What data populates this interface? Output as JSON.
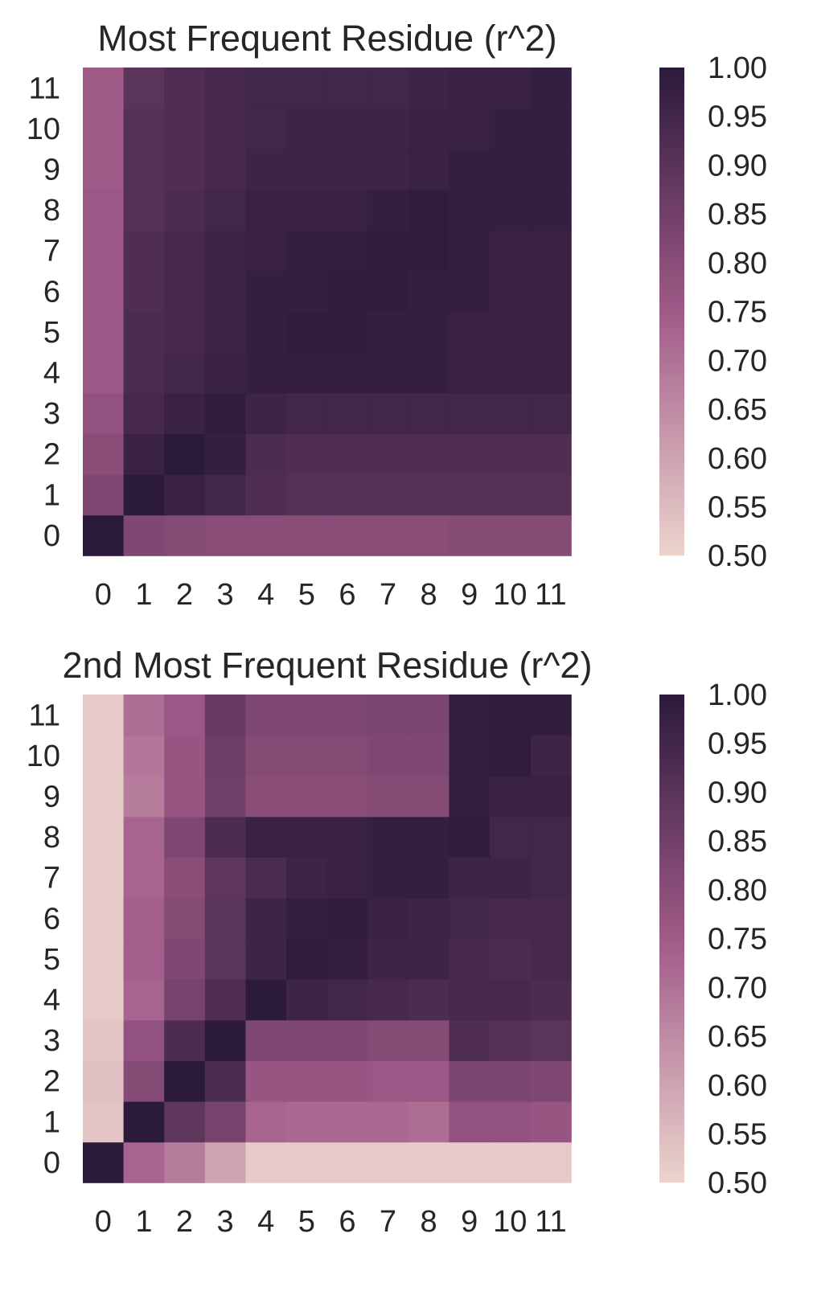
{
  "figure": {
    "colorscale": {
      "low": "#ecd4cd",
      "mid": "#a05a88",
      "high": "#2b1a3a"
    }
  },
  "chart_data": [
    {
      "type": "heatmap",
      "title": "Most Frequent Residue (r^2)",
      "xlabel": "",
      "ylabel": "",
      "x_categories": [
        "0",
        "1",
        "2",
        "3",
        "4",
        "5",
        "6",
        "7",
        "8",
        "9",
        "10",
        "11"
      ],
      "y_categories": [
        "0",
        "1",
        "2",
        "3",
        "4",
        "5",
        "6",
        "7",
        "8",
        "9",
        "10",
        "11"
      ],
      "vmin": 0.5,
      "vmax": 1.0,
      "colorbar_ticks": [
        "0.50",
        "0.55",
        "0.60",
        "0.65",
        "0.70",
        "0.75",
        "0.80",
        "0.85",
        "0.90",
        "0.95",
        "1.00"
      ],
      "values": [
        [
          1.0,
          0.82,
          0.81,
          0.8,
          0.8,
          0.8,
          0.8,
          0.8,
          0.8,
          0.81,
          0.81,
          0.81
        ],
        [
          0.82,
          1.0,
          0.97,
          0.95,
          0.92,
          0.91,
          0.91,
          0.91,
          0.91,
          0.91,
          0.91,
          0.91
        ],
        [
          0.8,
          0.97,
          1.0,
          0.98,
          0.93,
          0.92,
          0.92,
          0.92,
          0.92,
          0.92,
          0.92,
          0.92
        ],
        [
          0.78,
          0.94,
          0.97,
          0.99,
          0.96,
          0.95,
          0.95,
          0.95,
          0.95,
          0.95,
          0.95,
          0.95
        ],
        [
          0.76,
          0.93,
          0.95,
          0.97,
          0.98,
          0.98,
          0.98,
          0.98,
          0.98,
          0.97,
          0.97,
          0.97
        ],
        [
          0.76,
          0.93,
          0.94,
          0.96,
          0.98,
          0.99,
          0.99,
          0.98,
          0.98,
          0.97,
          0.97,
          0.97
        ],
        [
          0.76,
          0.92,
          0.94,
          0.96,
          0.98,
          0.98,
          0.99,
          0.99,
          0.98,
          0.98,
          0.97,
          0.97
        ],
        [
          0.76,
          0.92,
          0.94,
          0.96,
          0.97,
          0.98,
          0.98,
          0.99,
          0.99,
          0.98,
          0.97,
          0.97
        ],
        [
          0.76,
          0.91,
          0.93,
          0.95,
          0.97,
          0.97,
          0.97,
          0.98,
          0.99,
          0.98,
          0.98,
          0.98
        ],
        [
          0.75,
          0.91,
          0.92,
          0.94,
          0.96,
          0.96,
          0.96,
          0.96,
          0.97,
          0.98,
          0.98,
          0.98
        ],
        [
          0.75,
          0.91,
          0.92,
          0.94,
          0.95,
          0.96,
          0.96,
          0.96,
          0.97,
          0.97,
          0.98,
          0.98
        ],
        [
          0.75,
          0.9,
          0.92,
          0.94,
          0.95,
          0.95,
          0.95,
          0.95,
          0.96,
          0.97,
          0.97,
          0.98
        ]
      ]
    },
    {
      "type": "heatmap",
      "title": "2nd Most Frequent Residue (r^2)",
      "xlabel": "",
      "ylabel": "",
      "x_categories": [
        "0",
        "1",
        "2",
        "3",
        "4",
        "5",
        "6",
        "7",
        "8",
        "9",
        "10",
        "11"
      ],
      "y_categories": [
        "0",
        "1",
        "2",
        "3",
        "4",
        "5",
        "6",
        "7",
        "8",
        "9",
        "10",
        "11"
      ],
      "vmin": 0.5,
      "vmax": 1.0,
      "colorbar_ticks": [
        "0.50",
        "0.55",
        "0.60",
        "0.65",
        "0.70",
        "0.75",
        "0.80",
        "0.85",
        "0.90",
        "0.95",
        "1.00"
      ],
      "values": [
        [
          1.0,
          0.73,
          0.68,
          0.6,
          0.52,
          0.52,
          0.52,
          0.52,
          0.52,
          0.52,
          0.52,
          0.52
        ],
        [
          0.53,
          1.0,
          0.89,
          0.84,
          0.73,
          0.72,
          0.72,
          0.72,
          0.71,
          0.78,
          0.78,
          0.77
        ],
        [
          0.54,
          0.81,
          1.0,
          0.93,
          0.77,
          0.77,
          0.77,
          0.76,
          0.76,
          0.83,
          0.83,
          0.82
        ],
        [
          0.53,
          0.78,
          0.93,
          1.0,
          0.82,
          0.82,
          0.82,
          0.81,
          0.81,
          0.92,
          0.91,
          0.9
        ],
        [
          0.52,
          0.73,
          0.84,
          0.92,
          1.0,
          0.96,
          0.95,
          0.94,
          0.93,
          0.94,
          0.94,
          0.93
        ],
        [
          0.52,
          0.74,
          0.82,
          0.9,
          0.96,
          0.99,
          0.98,
          0.96,
          0.96,
          0.94,
          0.93,
          0.94
        ],
        [
          0.52,
          0.74,
          0.81,
          0.9,
          0.96,
          0.98,
          0.99,
          0.97,
          0.96,
          0.95,
          0.94,
          0.94
        ],
        [
          0.52,
          0.73,
          0.8,
          0.89,
          0.93,
          0.96,
          0.97,
          0.98,
          0.98,
          0.96,
          0.96,
          0.95
        ],
        [
          0.52,
          0.73,
          0.82,
          0.93,
          0.97,
          0.97,
          0.97,
          0.98,
          0.98,
          0.99,
          0.95,
          0.95
        ],
        [
          0.52,
          0.68,
          0.77,
          0.85,
          0.8,
          0.8,
          0.8,
          0.81,
          0.81,
          0.98,
          0.97,
          0.97
        ],
        [
          0.52,
          0.69,
          0.77,
          0.86,
          0.81,
          0.81,
          0.81,
          0.82,
          0.82,
          0.98,
          0.99,
          0.96
        ],
        [
          0.52,
          0.71,
          0.76,
          0.87,
          0.82,
          0.82,
          0.82,
          0.83,
          0.83,
          0.98,
          0.99,
          0.99
        ]
      ]
    }
  ]
}
